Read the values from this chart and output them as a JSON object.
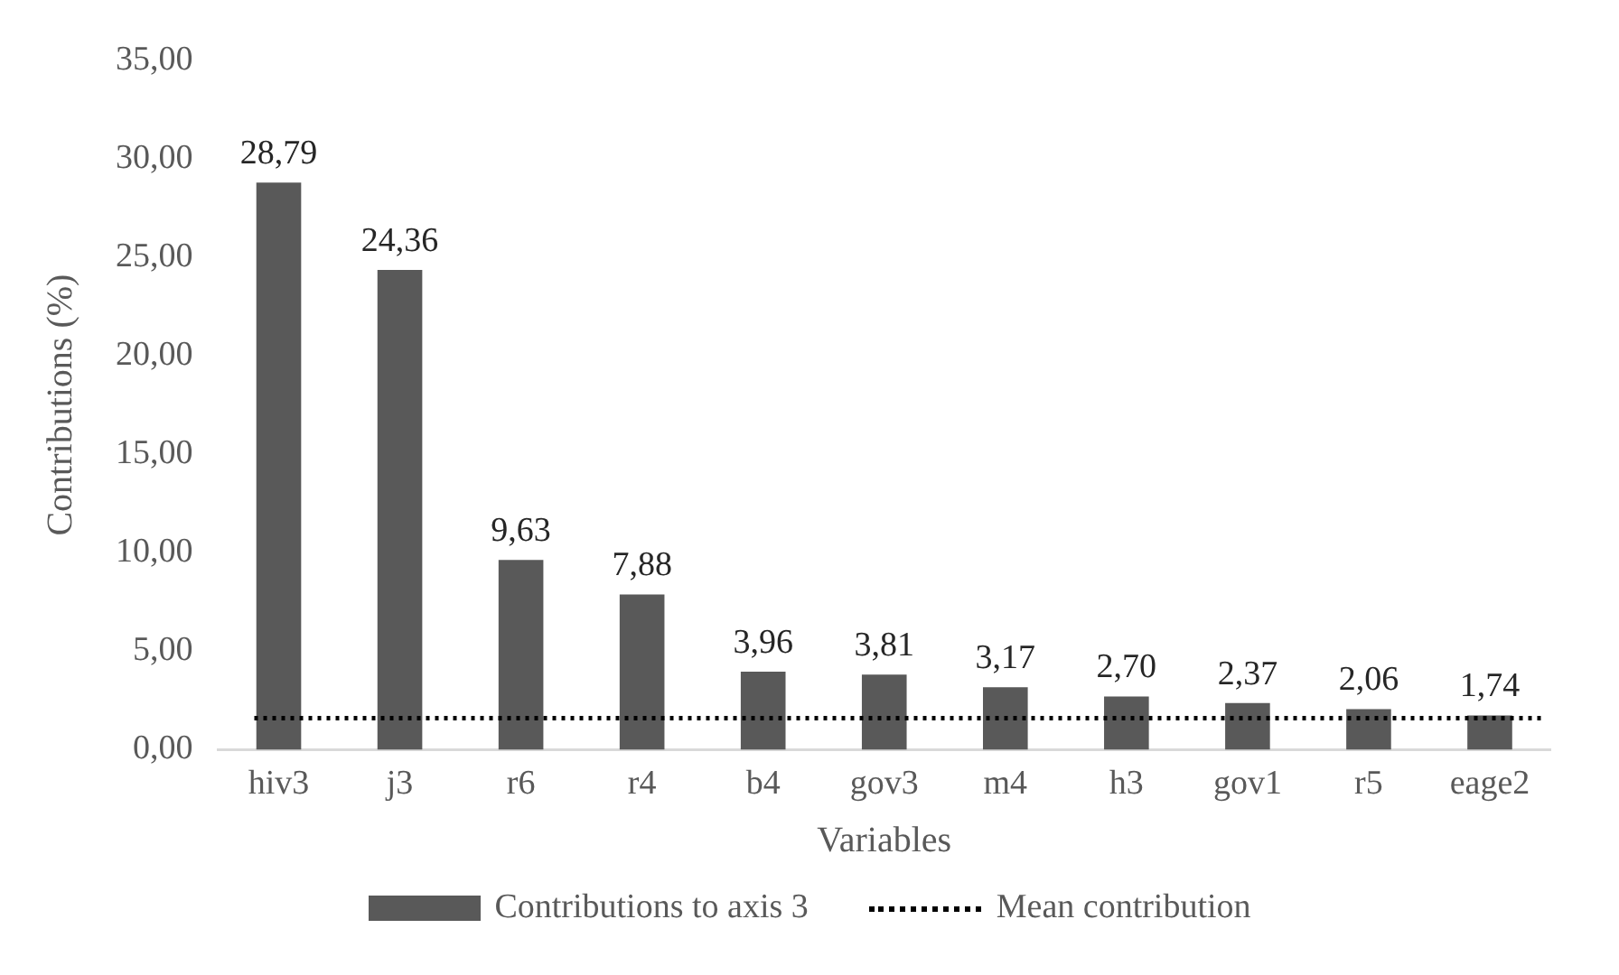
{
  "chart_data": {
    "type": "bar",
    "xlabel": "Variables",
    "ylabel": "Contributions (%)",
    "categories": [
      "hiv3",
      "j3",
      "r6",
      "r4",
      "b4",
      "gov3",
      "m4",
      "h3",
      "gov1",
      "r5",
      "eage2"
    ],
    "series": [
      {
        "name": "Contributions to axis 3",
        "color": "#595959",
        "values": [
          28.79,
          24.36,
          9.63,
          7.88,
          3.96,
          3.81,
          3.17,
          2.7,
          2.37,
          2.06,
          1.74
        ],
        "value_labels": [
          "28,79",
          "24,36",
          "9,63",
          "7,88",
          "3,96",
          "3,81",
          "3,17",
          "2,70",
          "2,37",
          "2,06",
          "1,74"
        ]
      }
    ],
    "ylim": [
      0,
      35
    ],
    "yticks": [
      {
        "value": 0,
        "label": "0,00"
      },
      {
        "value": 5,
        "label": "5,00"
      },
      {
        "value": 10,
        "label": "10,00"
      },
      {
        "value": 15,
        "label": "15,00"
      },
      {
        "value": 20,
        "label": "20,00"
      },
      {
        "value": 25,
        "label": "25,00"
      },
      {
        "value": 30,
        "label": "30,00"
      },
      {
        "value": 35,
        "label": "35,00"
      }
    ],
    "ref_lines": [
      {
        "axis": "y",
        "value": 1.6,
        "label": "Mean contribution",
        "color": "#000000",
        "line_style": "dotted"
      }
    ],
    "grid": false,
    "legend": "bottom"
  }
}
